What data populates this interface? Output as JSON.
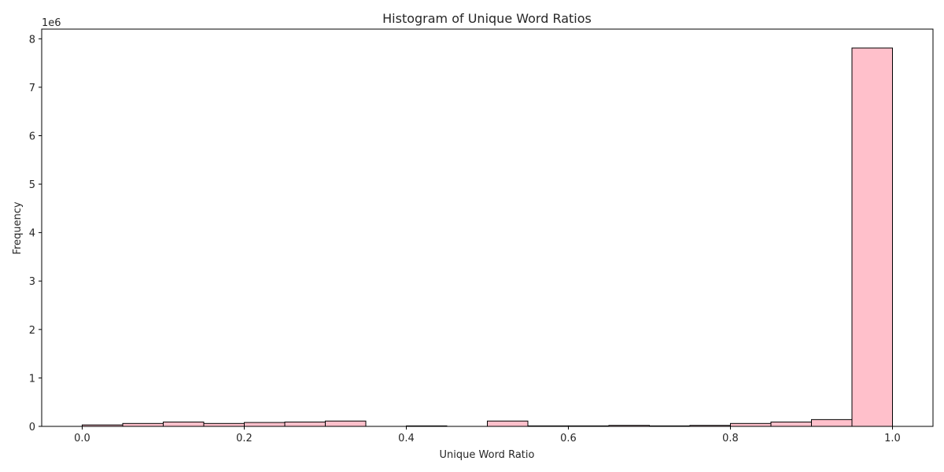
{
  "chart_data": {
    "type": "bar",
    "title": "Histogram of Unique Word Ratios",
    "xlabel": "Unique Word Ratio",
    "ylabel": "Frequency",
    "y_scale_label": "1e6",
    "xlim": [
      -0.05,
      1.05
    ],
    "ylim": [
      0,
      8.2
    ],
    "y_units": "millions",
    "x_ticks": [
      {
        "value": 0.0,
        "label": "0.0"
      },
      {
        "value": 0.2,
        "label": "0.2"
      },
      {
        "value": 0.4,
        "label": "0.4"
      },
      {
        "value": 0.6,
        "label": "0.6"
      },
      {
        "value": 0.8,
        "label": "0.8"
      },
      {
        "value": 1.0,
        "label": "1.0"
      }
    ],
    "y_ticks": [
      {
        "value": 0,
        "label": "0"
      },
      {
        "value": 1,
        "label": "1"
      },
      {
        "value": 2,
        "label": "2"
      },
      {
        "value": 3,
        "label": "3"
      },
      {
        "value": 4,
        "label": "4"
      },
      {
        "value": 5,
        "label": "5"
      },
      {
        "value": 6,
        "label": "6"
      },
      {
        "value": 7,
        "label": "7"
      },
      {
        "value": 8,
        "label": "8"
      }
    ],
    "bins": [
      {
        "start": 0.0,
        "end": 0.05,
        "value": 0.03
      },
      {
        "start": 0.05,
        "end": 0.1,
        "value": 0.06
      },
      {
        "start": 0.1,
        "end": 0.15,
        "value": 0.09
      },
      {
        "start": 0.15,
        "end": 0.2,
        "value": 0.06
      },
      {
        "start": 0.2,
        "end": 0.25,
        "value": 0.08
      },
      {
        "start": 0.25,
        "end": 0.3,
        "value": 0.09
      },
      {
        "start": 0.3,
        "end": 0.35,
        "value": 0.11
      },
      {
        "start": 0.35,
        "end": 0.4,
        "value": 0.0
      },
      {
        "start": 0.4,
        "end": 0.45,
        "value": 0.01
      },
      {
        "start": 0.45,
        "end": 0.5,
        "value": 0.0
      },
      {
        "start": 0.5,
        "end": 0.55,
        "value": 0.11
      },
      {
        "start": 0.55,
        "end": 0.6,
        "value": 0.01
      },
      {
        "start": 0.6,
        "end": 0.65,
        "value": 0.01
      },
      {
        "start": 0.65,
        "end": 0.7,
        "value": 0.02
      },
      {
        "start": 0.7,
        "end": 0.75,
        "value": 0.01
      },
      {
        "start": 0.75,
        "end": 0.8,
        "value": 0.02
      },
      {
        "start": 0.8,
        "end": 0.85,
        "value": 0.06
      },
      {
        "start": 0.85,
        "end": 0.9,
        "value": 0.09
      },
      {
        "start": 0.9,
        "end": 0.95,
        "value": 0.14
      },
      {
        "start": 0.95,
        "end": 1.0,
        "value": 7.81
      }
    ],
    "bar_color": "#ffc0cb",
    "edge_color": "#000000",
    "grid": false,
    "legend": "none"
  }
}
